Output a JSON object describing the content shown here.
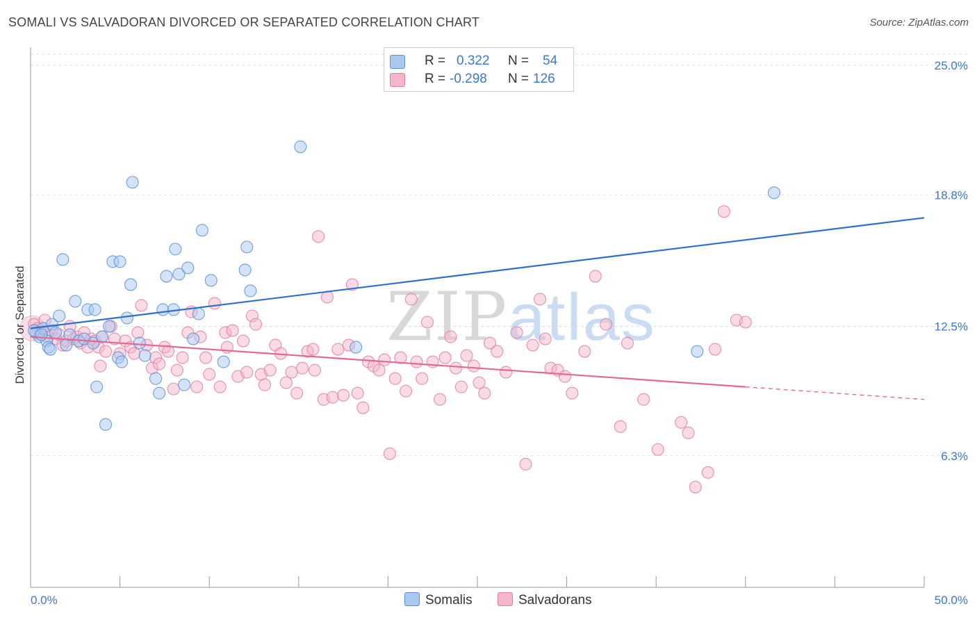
{
  "header": {
    "title": "SOMALI VS SALVADORAN DIVORCED OR SEPARATED CORRELATION CHART",
    "source": "Source: ZipAtlas.com"
  },
  "legend": {
    "rows": [
      {
        "r_label": "R =",
        "r_value": "0.322",
        "n_label": "N =",
        "n_value": "54",
        "color": "#a9c8f0"
      },
      {
        "r_label": "R =",
        "r_value": "-0.298",
        "n_label": "N =",
        "n_value": "126",
        "color": "#f5b6cb"
      }
    ]
  },
  "bottom_legend": {
    "somalis": "Somalis",
    "salvadorans": "Salvadorans"
  },
  "watermark": {
    "zip": "ZIP",
    "atlas": "atlas"
  },
  "colors": {
    "somali_fill": "#a9c8f0",
    "somali_stroke": "#5b8fd6",
    "somali_line": "#2f6fcc",
    "salvadoran_fill": "#f5b6cb",
    "salvadoran_stroke": "#e07fa0",
    "salvadoran_line": "#e06a95",
    "tick_text": "#3c78c8",
    "grid": "#dddddd"
  },
  "chart_data": {
    "type": "scatter",
    "title": "SOMALI VS SALVADORAN DIVORCED OR SEPARATED CORRELATION CHART",
    "xlabel": "",
    "ylabel": "Divorced or Separated",
    "xlim": [
      0,
      50
    ],
    "ylim": [
      0,
      25.8
    ],
    "x_tick_labels": [
      "0.0%",
      "50.0%"
    ],
    "y_ticks": [
      6.3,
      12.5,
      18.8,
      25.0
    ],
    "y_tick_labels": [
      "6.3%",
      "12.5%",
      "18.8%",
      "25.0%"
    ],
    "grid": "horizontal dashed",
    "legend_placement": "top-center",
    "series": [
      {
        "name": "Somalis",
        "trend": {
          "x": [
            0,
            50
          ],
          "y": [
            12.4,
            17.7
          ],
          "style": "solid"
        },
        "points": [
          [
            0.3,
            12.2
          ],
          [
            0.5,
            12.0
          ],
          [
            0.7,
            12.4
          ],
          [
            0.9,
            11.8
          ],
          [
            1.0,
            11.5
          ],
          [
            1.1,
            11.4
          ],
          [
            1.2,
            12.6
          ],
          [
            1.4,
            12.2
          ],
          [
            1.6,
            13.0
          ],
          [
            1.8,
            15.7
          ],
          [
            2.0,
            11.6
          ],
          [
            2.2,
            12.1
          ],
          [
            2.5,
            13.7
          ],
          [
            2.7,
            11.8
          ],
          [
            3.0,
            11.9
          ],
          [
            3.2,
            13.3
          ],
          [
            3.5,
            11.7
          ],
          [
            3.6,
            13.3
          ],
          [
            3.7,
            9.6
          ],
          [
            4.0,
            12.0
          ],
          [
            4.2,
            7.8
          ],
          [
            4.4,
            12.5
          ],
          [
            4.6,
            15.6
          ],
          [
            4.9,
            11.0
          ],
          [
            5.0,
            15.6
          ],
          [
            5.1,
            10.8
          ],
          [
            5.4,
            12.9
          ],
          [
            5.6,
            14.5
          ],
          [
            5.7,
            19.4
          ],
          [
            6.1,
            11.7
          ],
          [
            6.4,
            11.1
          ],
          [
            7.0,
            10.0
          ],
          [
            7.2,
            9.3
          ],
          [
            7.4,
            13.3
          ],
          [
            7.6,
            14.9
          ],
          [
            8.0,
            13.3
          ],
          [
            8.1,
            16.2
          ],
          [
            8.3,
            15.0
          ],
          [
            8.6,
            9.7
          ],
          [
            8.8,
            15.3
          ],
          [
            9.1,
            11.9
          ],
          [
            9.4,
            13.1
          ],
          [
            9.6,
            17.1
          ],
          [
            10.1,
            14.7
          ],
          [
            10.8,
            10.8
          ],
          [
            12.0,
            15.2
          ],
          [
            12.1,
            16.3
          ],
          [
            12.3,
            14.2
          ],
          [
            15.1,
            21.1
          ],
          [
            18.2,
            11.5
          ],
          [
            37.3,
            11.3
          ],
          [
            41.6,
            18.9
          ],
          [
            0.2,
            12.3
          ],
          [
            0.6,
            12.1
          ]
        ]
      },
      {
        "name": "Salvadorans",
        "trend": {
          "x": [
            0,
            40
          ],
          "y": [
            12.0,
            9.6
          ],
          "style": "solid",
          "extension": {
            "x": [
              40,
              50
            ],
            "y": [
              9.6,
              9.0
            ],
            "style": "dashed"
          }
        },
        "points": [
          [
            0.2,
            12.6
          ],
          [
            0.4,
            12.4
          ],
          [
            0.6,
            12.2
          ],
          [
            0.8,
            12.8
          ],
          [
            1.0,
            12.0
          ],
          [
            1.2,
            12.3
          ],
          [
            1.4,
            11.9
          ],
          [
            1.6,
            12.1
          ],
          [
            1.8,
            11.6
          ],
          [
            2.0,
            11.8
          ],
          [
            2.2,
            12.5
          ],
          [
            2.4,
            11.9
          ],
          [
            2.6,
            12.0
          ],
          [
            2.8,
            11.7
          ],
          [
            3.0,
            12.2
          ],
          [
            3.2,
            11.5
          ],
          [
            3.4,
            11.9
          ],
          [
            3.6,
            11.8
          ],
          [
            3.8,
            11.5
          ],
          [
            3.9,
            10.6
          ],
          [
            4.0,
            12.0
          ],
          [
            4.2,
            11.3
          ],
          [
            4.5,
            12.5
          ],
          [
            4.7,
            11.9
          ],
          [
            5.0,
            11.2
          ],
          [
            5.3,
            11.8
          ],
          [
            5.6,
            11.5
          ],
          [
            5.8,
            11.2
          ],
          [
            6.0,
            12.2
          ],
          [
            6.2,
            13.5
          ],
          [
            6.5,
            11.6
          ],
          [
            6.8,
            10.5
          ],
          [
            7.0,
            11.0
          ],
          [
            7.2,
            10.7
          ],
          [
            7.5,
            11.5
          ],
          [
            7.7,
            11.3
          ],
          [
            8.0,
            9.5
          ],
          [
            8.2,
            10.4
          ],
          [
            8.5,
            11.0
          ],
          [
            8.8,
            12.2
          ],
          [
            9.0,
            13.2
          ],
          [
            9.3,
            9.6
          ],
          [
            9.5,
            12.0
          ],
          [
            9.8,
            11.0
          ],
          [
            10.0,
            10.2
          ],
          [
            10.3,
            13.6
          ],
          [
            10.6,
            9.6
          ],
          [
            10.9,
            12.2
          ],
          [
            11.0,
            11.5
          ],
          [
            11.3,
            12.3
          ],
          [
            11.6,
            10.1
          ],
          [
            11.9,
            11.8
          ],
          [
            12.1,
            10.3
          ],
          [
            12.4,
            13.0
          ],
          [
            12.6,
            12.6
          ],
          [
            12.9,
            10.2
          ],
          [
            13.1,
            9.7
          ],
          [
            13.4,
            10.4
          ],
          [
            13.7,
            11.6
          ],
          [
            14.0,
            11.2
          ],
          [
            14.3,
            9.8
          ],
          [
            14.6,
            10.3
          ],
          [
            14.9,
            9.3
          ],
          [
            15.2,
            10.5
          ],
          [
            15.5,
            11.3
          ],
          [
            15.8,
            11.4
          ],
          [
            15.9,
            10.4
          ],
          [
            16.1,
            16.8
          ],
          [
            16.4,
            9.0
          ],
          [
            16.6,
            13.9
          ],
          [
            16.9,
            9.1
          ],
          [
            17.2,
            11.4
          ],
          [
            17.5,
            9.2
          ],
          [
            17.8,
            11.6
          ],
          [
            18.0,
            14.5
          ],
          [
            18.3,
            9.3
          ],
          [
            18.6,
            8.6
          ],
          [
            18.9,
            10.8
          ],
          [
            19.2,
            10.6
          ],
          [
            19.5,
            10.4
          ],
          [
            19.8,
            10.9
          ],
          [
            20.1,
            6.4
          ],
          [
            20.4,
            10.0
          ],
          [
            20.7,
            11.0
          ],
          [
            21.0,
            9.4
          ],
          [
            21.3,
            13.8
          ],
          [
            21.6,
            10.8
          ],
          [
            21.9,
            10.0
          ],
          [
            22.2,
            12.7
          ],
          [
            22.5,
            10.8
          ],
          [
            22.9,
            9.0
          ],
          [
            23.2,
            11.0
          ],
          [
            23.5,
            12.0
          ],
          [
            23.8,
            10.5
          ],
          [
            24.1,
            9.6
          ],
          [
            24.4,
            11.1
          ],
          [
            24.8,
            10.6
          ],
          [
            25.1,
            9.8
          ],
          [
            25.4,
            9.3
          ],
          [
            25.7,
            11.7
          ],
          [
            26.1,
            11.3
          ],
          [
            26.6,
            10.3
          ],
          [
            27.2,
            12.2
          ],
          [
            27.7,
            5.9
          ],
          [
            28.1,
            11.6
          ],
          [
            28.5,
            13.8
          ],
          [
            28.8,
            11.9
          ],
          [
            29.1,
            10.5
          ],
          [
            29.5,
            10.4
          ],
          [
            29.9,
            10.1
          ],
          [
            30.3,
            9.3
          ],
          [
            31.0,
            11.3
          ],
          [
            31.6,
            14.9
          ],
          [
            32.2,
            12.6
          ],
          [
            33.0,
            7.7
          ],
          [
            33.4,
            11.7
          ],
          [
            34.3,
            9.0
          ],
          [
            35.1,
            6.6
          ],
          [
            36.4,
            7.9
          ],
          [
            36.8,
            7.4
          ],
          [
            37.2,
            4.8
          ],
          [
            37.9,
            5.5
          ],
          [
            38.3,
            11.4
          ],
          [
            38.8,
            18.0
          ],
          [
            39.5,
            12.8
          ],
          [
            40.0,
            12.7
          ]
        ]
      }
    ]
  }
}
